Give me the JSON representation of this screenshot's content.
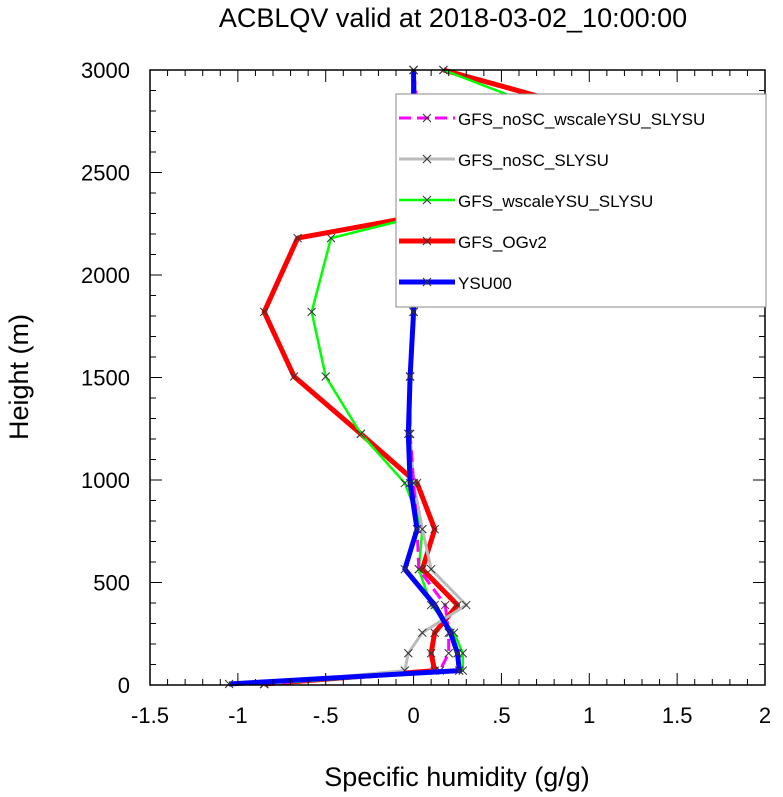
{
  "chart_data": {
    "type": "line",
    "title": "ACBLQV valid at 2018-03-02_10:00:00",
    "xlabel": "Specific humidity (g/g)",
    "ylabel": "Height (m)",
    "xlim": [
      -1.5,
      2
    ],
    "ylim": [
      0,
      3000
    ],
    "xticks": [
      {
        "v": -1.5,
        "label": "-1.5"
      },
      {
        "v": -1,
        "label": "-1"
      },
      {
        "v": -0.5,
        "label": "-.5"
      },
      {
        "v": 0,
        "label": "0"
      },
      {
        "v": 0.5,
        "label": ".5"
      },
      {
        "v": 1,
        "label": "1"
      },
      {
        "v": 1.5,
        "label": "1.5"
      },
      {
        "v": 2,
        "label": "2"
      }
    ],
    "yticks": [
      {
        "v": 0,
        "label": "0"
      },
      {
        "v": 500,
        "label": "500"
      },
      {
        "v": 1000,
        "label": "1000"
      },
      {
        "v": 1500,
        "label": "1500"
      },
      {
        "v": 2000,
        "label": "2000"
      },
      {
        "v": 2500,
        "label": "2500"
      },
      {
        "v": 3000,
        "label": "3000"
      }
    ],
    "grid": false,
    "legend": "top-right",
    "series": [
      {
        "name": "GFS_OGv2",
        "color": "#ff0000",
        "dash": "solid",
        "width": 5,
        "points": [
          [
            -0.85,
            5
          ],
          [
            0.12,
            70
          ],
          [
            0.1,
            155
          ],
          [
            0.12,
            255
          ],
          [
            0.25,
            390
          ],
          [
            0.05,
            565
          ],
          [
            0.12,
            760
          ],
          [
            0.02,
            985
          ],
          [
            -0.3,
            1225
          ],
          [
            -0.68,
            1505
          ],
          [
            -0.85,
            1820
          ],
          [
            -0.66,
            2180
          ],
          [
            1.92,
            2585
          ],
          [
            0.17,
            3000
          ]
        ]
      },
      {
        "name": "GFS_wscaleYSU_SLYSU",
        "color": "#00ff00",
        "dash": "solid",
        "width": 2.5,
        "points": [
          [
            -0.85,
            5
          ],
          [
            0.28,
            70
          ],
          [
            0.28,
            155
          ],
          [
            0.23,
            255
          ],
          [
            0.1,
            390
          ],
          [
            0.03,
            565
          ],
          [
            0.05,
            760
          ],
          [
            -0.05,
            985
          ],
          [
            -0.3,
            1225
          ],
          [
            -0.5,
            1505
          ],
          [
            -0.58,
            1820
          ],
          [
            -0.47,
            2180
          ],
          [
            1.43,
            2585
          ],
          [
            0.17,
            3000
          ]
        ]
      },
      {
        "name": "GFS_noSC_SLYSU",
        "color": "#bbbbbb",
        "dash": "solid",
        "width": 3,
        "points": [
          [
            -0.85,
            5
          ],
          [
            -0.05,
            70
          ],
          [
            -0.03,
            155
          ],
          [
            0.05,
            255
          ],
          [
            0.3,
            390
          ],
          [
            0.1,
            565
          ],
          [
            0.05,
            760
          ],
          [
            0.0,
            985
          ],
          [
            -0.02,
            1225
          ],
          [
            -0.02,
            1505
          ],
          [
            0.0,
            1820
          ],
          [
            0.02,
            2180
          ],
          [
            0.05,
            2585
          ],
          [
            0.0,
            3000
          ]
        ]
      },
      {
        "name": "GFS_noSC_wscaleYSU_SLYSU",
        "color": "#ff00ff",
        "dash": "dash",
        "width": 3,
        "points": [
          [
            -0.85,
            5
          ],
          [
            0.15,
            70
          ],
          [
            0.2,
            155
          ],
          [
            0.2,
            255
          ],
          [
            0.18,
            390
          ],
          [
            0.03,
            565
          ],
          [
            0.02,
            760
          ],
          [
            0.0,
            985
          ],
          [
            -0.02,
            1225
          ],
          [
            -0.02,
            1505
          ],
          [
            0.0,
            1820
          ],
          [
            0.02,
            2180
          ],
          [
            0.05,
            2585
          ],
          [
            0.0,
            3000
          ]
        ]
      },
      {
        "name": "YSU00",
        "color": "#0000ff",
        "dash": "solid",
        "width": 5,
        "points": [
          [
            -1.05,
            5
          ],
          [
            0.26,
            70
          ],
          [
            0.25,
            155
          ],
          [
            0.21,
            255
          ],
          [
            0.12,
            390
          ],
          [
            -0.05,
            565
          ],
          [
            0.02,
            760
          ],
          [
            -0.02,
            985
          ],
          [
            -0.03,
            1225
          ],
          [
            -0.02,
            1505
          ],
          [
            0.0,
            1820
          ],
          [
            0.0,
            2180
          ],
          [
            0.0,
            2585
          ],
          [
            0.0,
            3000
          ]
        ]
      }
    ],
    "legend_entries": [
      {
        "name": "GFS_noSC_wscaleYSU_SLYSU",
        "color": "#ff00ff",
        "dash": "dash",
        "width": 3
      },
      {
        "name": "GFS_noSC_SLYSU",
        "color": "#bbbbbb",
        "dash": "solid",
        "width": 3
      },
      {
        "name": "GFS_wscaleYSU_SLYSU",
        "color": "#00ff00",
        "dash": "solid",
        "width": 2.5
      },
      {
        "name": "GFS_OGv2",
        "color": "#ff0000",
        "dash": "solid",
        "width": 5
      },
      {
        "name": "YSU00",
        "color": "#0000ff",
        "dash": "solid",
        "width": 5
      }
    ]
  }
}
